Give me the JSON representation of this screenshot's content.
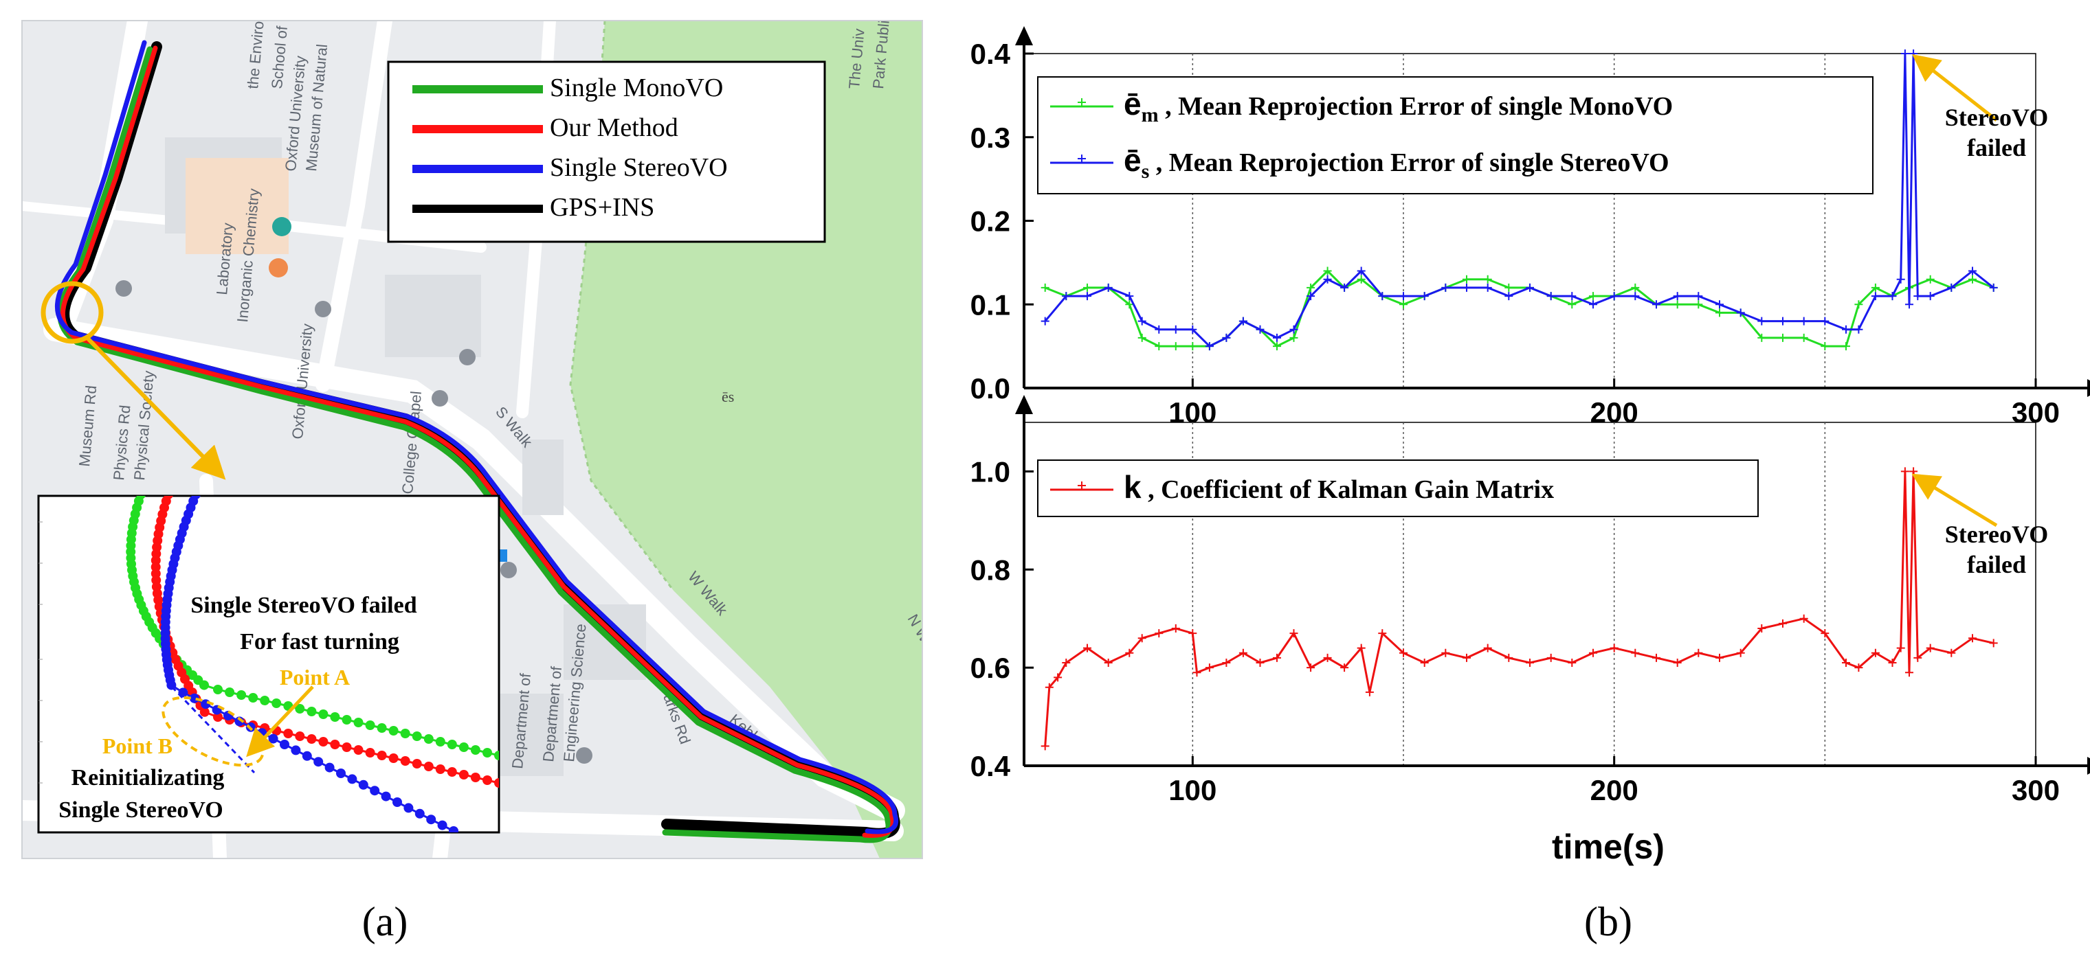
{
  "colors": {
    "mono": "#22dd22",
    "ours": "#ff1111",
    "stereo": "#1a1aee",
    "gps": "#000000",
    "k": "#ee1111",
    "annotation": "#f5b800",
    "park": "#bfe6b0",
    "map_bg": "#e9ebee"
  },
  "panel_a": {
    "caption": "(a)",
    "legend": [
      {
        "label": "Single MonoVO",
        "color": "#22aa22"
      },
      {
        "label": "Our Method",
        "color": "#ff1111"
      },
      {
        "label": "Single StereoVO",
        "color": "#1a1aee"
      },
      {
        "label": "GPS+INS",
        "color": "#000000"
      }
    ],
    "map_labels": [
      "Oxford University",
      "Museum of Natural",
      "School of Geograph",
      "the Environment",
      "Inorganic Chemistry",
      "Laboratory",
      "Oxford University",
      "Physical Society",
      "College Chapel",
      "Department of",
      "Engineering Science",
      "Department of",
      "Parks Rd",
      "S Walk",
      "W Walk",
      "N Walk",
      "Keble Rd",
      "Museum Rd",
      "Physics Rd",
      "The Univ",
      "Park Public T",
      "ēs"
    ],
    "inset": {
      "text_fail_1": "Single StereoVO failed",
      "text_fail_2": "For fast turning",
      "point_a": "Point A",
      "point_b": "Point B",
      "reinit_1": "Reinitializating",
      "reinit_2": "Single StereoVO"
    }
  },
  "panel_b": {
    "caption": "(b)",
    "xlabel": "time(s)",
    "annotation_line1": "StereoVO",
    "annotation_line2": "failed"
  },
  "chart_data": [
    {
      "type": "line",
      "title": "",
      "xlabel": "",
      "ylabel": "",
      "xlim": [
        60,
        300
      ],
      "ylim": [
        0.0,
        0.4
      ],
      "x_ticks": [
        "100",
        "200",
        "300"
      ],
      "y_ticks": [
        "0.0",
        "0.1",
        "0.2",
        "0.3",
        "0.4"
      ],
      "series": [
        {
          "name": "ē_m , Mean Reprojection Error of single MonoVO",
          "symbol": "ē",
          "sub": "m",
          "text": " , Mean Reprojection Error of single MonoVO",
          "color": "#22dd22",
          "x": [
            65,
            70,
            75,
            80,
            85,
            88,
            92,
            96,
            100,
            104,
            108,
            112,
            116,
            120,
            124,
            128,
            132,
            136,
            140,
            145,
            150,
            155,
            160,
            165,
            170,
            175,
            180,
            185,
            190,
            195,
            200,
            205,
            210,
            215,
            220,
            225,
            230,
            235,
            240,
            245,
            250,
            255,
            258,
            262,
            266,
            270,
            275,
            280,
            285,
            290
          ],
          "y": [
            0.12,
            0.11,
            0.12,
            0.12,
            0.1,
            0.06,
            0.05,
            0.05,
            0.05,
            0.05,
            0.06,
            0.08,
            0.07,
            0.05,
            0.06,
            0.12,
            0.14,
            0.12,
            0.13,
            0.11,
            0.1,
            0.11,
            0.12,
            0.13,
            0.13,
            0.12,
            0.12,
            0.11,
            0.1,
            0.11,
            0.11,
            0.12,
            0.1,
            0.1,
            0.1,
            0.09,
            0.09,
            0.06,
            0.06,
            0.06,
            0.05,
            0.05,
            0.1,
            0.12,
            0.11,
            0.12,
            0.13,
            0.12,
            0.13,
            0.12
          ]
        },
        {
          "name": "ē_s , Mean Reprojection Error of single StereoVO",
          "symbol": "ē",
          "sub": "s",
          "text": " , Mean Reprojection Error of single StereoVO",
          "color": "#1a1aee",
          "x": [
            65,
            70,
            75,
            80,
            85,
            88,
            92,
            96,
            100,
            104,
            108,
            112,
            116,
            120,
            124,
            128,
            132,
            136,
            140,
            145,
            150,
            155,
            160,
            165,
            170,
            175,
            180,
            185,
            190,
            195,
            200,
            205,
            210,
            215,
            220,
            225,
            230,
            235,
            240,
            245,
            250,
            255,
            258,
            262,
            266,
            268,
            269,
            270,
            271,
            272,
            275,
            280,
            285,
            290
          ],
          "y": [
            0.08,
            0.11,
            0.11,
            0.12,
            0.11,
            0.08,
            0.07,
            0.07,
            0.07,
            0.05,
            0.06,
            0.08,
            0.07,
            0.06,
            0.07,
            0.11,
            0.13,
            0.12,
            0.14,
            0.11,
            0.11,
            0.11,
            0.12,
            0.12,
            0.12,
            0.11,
            0.12,
            0.11,
            0.11,
            0.1,
            0.11,
            0.11,
            0.1,
            0.11,
            0.11,
            0.1,
            0.09,
            0.08,
            0.08,
            0.08,
            0.08,
            0.07,
            0.07,
            0.11,
            0.11,
            0.13,
            0.4,
            0.1,
            0.4,
            0.11,
            0.11,
            0.12,
            0.14,
            0.12
          ]
        }
      ]
    },
    {
      "type": "line",
      "title": "",
      "xlabel": "time(s)",
      "ylabel": "",
      "xlim": [
        60,
        300
      ],
      "ylim": [
        0.4,
        1.1
      ],
      "x_ticks": [
        "100",
        "200",
        "300"
      ],
      "y_ticks": [
        "0.4",
        "0.6",
        "0.8",
        "1.0"
      ],
      "series": [
        {
          "name": "k , Coefficient of Kalman Gain Matrix",
          "symbol": "k",
          "text": " , Coefficient of Kalman Gain Matrix",
          "color": "#ee1111",
          "x": [
            65,
            66,
            68,
            70,
            75,
            80,
            85,
            88,
            92,
            96,
            100,
            101,
            104,
            108,
            112,
            116,
            120,
            124,
            128,
            132,
            136,
            140,
            142,
            145,
            150,
            155,
            160,
            165,
            170,
            175,
            180,
            185,
            190,
            195,
            200,
            205,
            210,
            215,
            220,
            225,
            230,
            235,
            240,
            245,
            250,
            255,
            258,
            262,
            266,
            268,
            269,
            270,
            271,
            272,
            275,
            280,
            285,
            290
          ],
          "y": [
            0.44,
            0.56,
            0.58,
            0.61,
            0.64,
            0.61,
            0.63,
            0.66,
            0.67,
            0.68,
            0.67,
            0.59,
            0.6,
            0.61,
            0.63,
            0.61,
            0.62,
            0.67,
            0.6,
            0.62,
            0.6,
            0.64,
            0.55,
            0.67,
            0.63,
            0.61,
            0.63,
            0.62,
            0.64,
            0.62,
            0.61,
            0.62,
            0.61,
            0.63,
            0.64,
            0.63,
            0.62,
            0.61,
            0.63,
            0.62,
            0.63,
            0.68,
            0.69,
            0.7,
            0.67,
            0.61,
            0.6,
            0.63,
            0.61,
            0.64,
            1.0,
            0.59,
            1.0,
            0.62,
            0.64,
            0.63,
            0.66,
            0.65
          ]
        }
      ]
    }
  ]
}
